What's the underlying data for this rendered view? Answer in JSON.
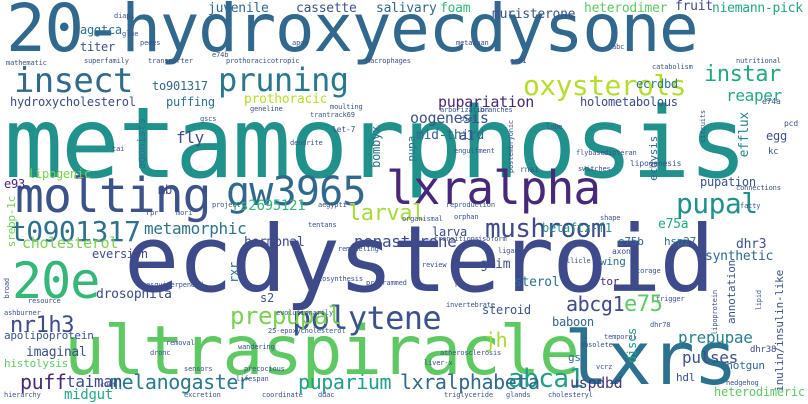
{
  "words": [
    {
      "text": "20-hydroxyecdysone",
      "color": "#31688e"
    },
    {
      "text": "metamorphosis",
      "color": "#21918c"
    },
    {
      "text": "ecdysteroid",
      "color": "#3e4a89"
    },
    {
      "text": "ultraspiracle",
      "color": "#5ec962"
    },
    {
      "text": "molting",
      "color": "#3b528b"
    },
    {
      "text": "gw3965",
      "color": "#31688e"
    },
    {
      "text": "lxralpha",
      "color": "#482878"
    },
    {
      "text": "lxrs",
      "color": "#2c728e"
    },
    {
      "text": "20e",
      "color": "#35b779"
    },
    {
      "text": "insect",
      "color": "#31688e"
    },
    {
      "text": "pruning",
      "color": "#2a788e"
    },
    {
      "text": "oxysterols",
      "color": "#b5de2b"
    },
    {
      "text": "t0901317",
      "color": "#2c728e"
    },
    {
      "text": "mushroom",
      "color": "#3e4a89"
    },
    {
      "text": "polytene",
      "color": "#3b528b"
    },
    {
      "text": "pupal",
      "color": "#21918c"
    },
    {
      "text": "instar",
      "color": "#22a884"
    },
    {
      "text": "prepupal",
      "color": "#7ad151"
    },
    {
      "text": "larval",
      "color": "#a5db36"
    },
    {
      "text": "abca1",
      "color": "#1f9e89"
    },
    {
      "text": "e75",
      "color": "#5ec962"
    },
    {
      "text": "nr1h3",
      "color": "#3e4a89"
    },
    {
      "text": "jh",
      "color": "#a5db36"
    },
    {
      "text": "melanogaster",
      "color": "#2a788e"
    },
    {
      "text": "puparium",
      "color": "#1f9e89"
    },
    {
      "text": "lxralphabeta",
      "color": "#31688e"
    },
    {
      "text": "abcg1",
      "color": "#3e4a89"
    },
    {
      "text": "taiman",
      "color": "#3e4a89"
    },
    {
      "text": "puff",
      "color": "#482878"
    },
    {
      "text": "midgut",
      "color": "#22a884"
    },
    {
      "text": "uspdbd",
      "color": "#443983"
    },
    {
      "text": "prepupae",
      "color": "#26828e"
    },
    {
      "text": "pulses",
      "color": "#3b528b"
    },
    {
      "text": "cholesterol",
      "color": "#7ad151"
    },
    {
      "text": "metamorphic",
      "color": "#2c728e"
    },
    {
      "text": "rs2695121",
      "color": "#35b779"
    },
    {
      "text": "ponasterone",
      "color": "#3e4a89"
    },
    {
      "text": "oogenesis",
      "color": "#3b528b"
    },
    {
      "text": "pupariation",
      "color": "#482878"
    },
    {
      "text": "juvenile",
      "color": "#31688e"
    },
    {
      "text": "cassette",
      "color": "#3b528b"
    },
    {
      "text": "salivary",
      "color": "#31688e"
    },
    {
      "text": "foam",
      "color": "#35b779"
    },
    {
      "text": "muristerone",
      "color": "#3b528b"
    },
    {
      "text": "heterodimer",
      "color": "#5ec962"
    },
    {
      "text": "fruit",
      "color": "#3e4a89"
    },
    {
      "text": "niemann-pick",
      "color": "#22a884"
    },
    {
      "text": "aggtca",
      "color": "#2c728e"
    },
    {
      "text": "titer",
      "color": "#3b528b"
    },
    {
      "text": "to901317",
      "color": "#31688e"
    },
    {
      "text": "hydroxycholesterol",
      "color": "#3e4a89"
    },
    {
      "text": "puffing",
      "color": "#2c728e"
    },
    {
      "text": "prothoracic",
      "color": "#b5de2b"
    },
    {
      "text": "mid-third",
      "color": "#31688e"
    },
    {
      "text": "holometabolous",
      "color": "#3e4a89"
    },
    {
      "text": "reaper",
      "color": "#22a884"
    },
    {
      "text": "efflux",
      "color": "#26828e"
    },
    {
      "text": "egg",
      "color": "#3b528b"
    },
    {
      "text": "ecrdbd",
      "color": "#2a788e"
    },
    {
      "text": "fly",
      "color": "#3e4a89"
    },
    {
      "text": "agonists",
      "color": "#2c728e"
    },
    {
      "text": "bombyx",
      "color": "#2c728e"
    },
    {
      "text": "pupa",
      "color": "#2a788e"
    },
    {
      "text": "a1",
      "color": "#3b528b"
    },
    {
      "text": "lipogenic",
      "color": "#7ad151"
    },
    {
      "text": "e93",
      "color": "#482878"
    },
    {
      "text": "mb",
      "color": "#3e4a89"
    },
    {
      "text": "pupation",
      "color": "#3b528b"
    },
    {
      "text": "ecdysis",
      "color": "#31688e"
    },
    {
      "text": "larva",
      "color": "#3e4a89"
    },
    {
      "text": "betaftz-f1",
      "color": "#21918c"
    },
    {
      "text": "e75a",
      "color": "#22a884"
    },
    {
      "text": "e75b",
      "color": "#31688e"
    },
    {
      "text": "hsp27",
      "color": "#2c728e"
    },
    {
      "text": "dhr3",
      "color": "#3b528b"
    },
    {
      "text": "synthetic",
      "color": "#31688e"
    },
    {
      "text": "hormonal",
      "color": "#3e4a89"
    },
    {
      "text": "srebp-1c",
      "color": "#7ad151"
    },
    {
      "text": "eversion",
      "color": "#3e4a89"
    },
    {
      "text": "grim",
      "color": "#3b528b"
    },
    {
      "text": "sterol",
      "color": "#2c728e"
    },
    {
      "text": "annotation",
      "color": "#3b528b"
    },
    {
      "text": "wing",
      "color": "#2c728e"
    },
    {
      "text": "drosophila",
      "color": "#3e4a89"
    },
    {
      "text": "rxr",
      "color": "#2c728e"
    },
    {
      "text": "s2",
      "color": "#3b528b"
    },
    {
      "text": "steroid",
      "color": "#3b528b"
    },
    {
      "text": "tor",
      "color": "#482878"
    },
    {
      "text": "imaginal",
      "color": "#3b528b"
    },
    {
      "text": "baboon",
      "color": "#31688e"
    },
    {
      "text": "discs",
      "color": "#1f9e89"
    },
    {
      "text": "inulin/insulin-like",
      "color": "#3b528b"
    },
    {
      "text": "gsc",
      "color": "#2c728e"
    },
    {
      "text": "hdl",
      "color": "#3b528b"
    },
    {
      "text": "shotgun",
      "color": "#31688e"
    },
    {
      "text": "heterodimeric",
      "color": "#5ec962"
    },
    {
      "text": "dhr38",
      "color": "#3e4a89"
    },
    {
      "text": "apolipoprotein",
      "color": "#3b528b"
    },
    {
      "text": "histolysis",
      "color": "#5ec962"
    },
    {
      "text": "metazoan",
      "color": "#3e4a89"
    },
    {
      "text": "ecd1",
      "color": "#3b528b"
    },
    {
      "text": "arborization",
      "color": "#3b528b"
    },
    {
      "text": "branches",
      "color": "#3b528b"
    },
    {
      "text": "dendrite",
      "color": "#3b528b"
    },
    {
      "text": "moulting",
      "color": "#3b528b"
    },
    {
      "text": "let-7",
      "color": "#3b528b"
    },
    {
      "text": "lipogenesis",
      "color": "#3b528b"
    },
    {
      "text": "rnai",
      "color": "#3b528b"
    },
    {
      "text": "switches",
      "color": "#3b528b"
    },
    {
      "text": "connections",
      "color": "#3b528b"
    },
    {
      "text": "fatty",
      "color": "#3b528b"
    },
    {
      "text": "shape",
      "color": "#3b528b"
    },
    {
      "text": "isoform",
      "color": "#3b528b"
    },
    {
      "text": "transitions",
      "color": "#3b528b"
    },
    {
      "text": "remodeling",
      "color": "#3b528b"
    },
    {
      "text": "tentans",
      "color": "#3b528b"
    },
    {
      "text": "ligands",
      "color": "#3b528b"
    },
    {
      "text": "follicle",
      "color": "#3b528b"
    },
    {
      "text": "axon",
      "color": "#3b528b"
    },
    {
      "text": "storage",
      "color": "#3b528b"
    },
    {
      "text": "review",
      "color": "#3b528b"
    },
    {
      "text": "programmed",
      "color": "#3b528b"
    },
    {
      "text": "fat",
      "color": "#3b528b"
    },
    {
      "text": "biosynthesis",
      "color": "#3b528b"
    },
    {
      "text": "invertebrate",
      "color": "#3b528b"
    },
    {
      "text": "sesquiterpenoid",
      "color": "#3b528b"
    },
    {
      "text": "25-epoxycholesterol",
      "color": "#3b528b"
    },
    {
      "text": "obsolete",
      "color": "#3b528b"
    },
    {
      "text": "wandering",
      "color": "#3b528b"
    },
    {
      "text": "precocious",
      "color": "#3b528b"
    },
    {
      "text": "excretion",
      "color": "#3b528b"
    },
    {
      "text": "coordinate",
      "color": "#3b528b"
    },
    {
      "text": "ddac",
      "color": "#3b528b"
    },
    {
      "text": "triglyceride",
      "color": "#3b528b"
    },
    {
      "text": "glands",
      "color": "#3b528b"
    },
    {
      "text": "cholesteryl",
      "color": "#3b528b"
    },
    {
      "text": "hierarchy",
      "color": "#3b528b"
    },
    {
      "text": "sensors",
      "color": "#3b528b"
    },
    {
      "text": "dronc",
      "color": "#3b528b"
    },
    {
      "text": "removal",
      "color": "#3b528b"
    },
    {
      "text": "resource",
      "color": "#3b528b"
    },
    {
      "text": "retinoid",
      "color": "#3b528b"
    },
    {
      "text": "ashburner",
      "color": "#3b528b"
    },
    {
      "text": "atherosclerosis",
      "color": "#3b528b"
    },
    {
      "text": "liver-x",
      "color": "#3b528b"
    },
    {
      "text": "vcrz",
      "color": "#3b528b"
    },
    {
      "text": "superfamily",
      "color": "#3b528b"
    },
    {
      "text": "transporter",
      "color": "#3b528b"
    },
    {
      "text": "prothoracicotropic",
      "color": "#3b528b"
    },
    {
      "text": "macrophages",
      "color": "#3b528b"
    },
    {
      "text": "catabolism",
      "color": "#3b528b"
    },
    {
      "text": "nutritional",
      "color": "#3b528b"
    },
    {
      "text": "trantrack69",
      "color": "#3b528b"
    },
    {
      "text": "postembryonic",
      "color": "#3b528b"
    },
    {
      "text": "flybase",
      "color": "#3b528b"
    },
    {
      "text": "dipteran",
      "color": "#3b528b"
    },
    {
      "text": "circuits",
      "color": "#3b528b"
    },
    {
      "text": "engulfment",
      "color": "#3b528b"
    },
    {
      "text": "reproduction",
      "color": "#3b528b"
    },
    {
      "text": "aegypti",
      "color": "#3b528b"
    },
    {
      "text": "project",
      "color": "#3b528b"
    },
    {
      "text": "organismal",
      "color": "#3b528b"
    },
    {
      "text": "orphan",
      "color": "#3b528b"
    },
    {
      "text": "evolutionarily",
      "color": "#3b528b"
    },
    {
      "text": "dhr78",
      "color": "#3b528b"
    },
    {
      "text": "trigger",
      "color": "#3b528b"
    },
    {
      "text": "lipid",
      "color": "#3b528b"
    },
    {
      "text": "lipoprotein",
      "color": "#3b528b"
    },
    {
      "text": "temporal",
      "color": "#3b528b"
    },
    {
      "text": "lifespan",
      "color": "#3b528b"
    },
    {
      "text": "broad",
      "color": "#3b528b"
    },
    {
      "text": "kc",
      "color": "#3b528b"
    },
    {
      "text": "pcd",
      "color": "#3b528b"
    },
    {
      "text": "e74a",
      "color": "#3b528b"
    },
    {
      "text": "e74b",
      "color": "#3b528b"
    },
    {
      "text": "apoe",
      "color": "#3b528b"
    },
    {
      "text": "geneline",
      "color": "#3b528b"
    },
    {
      "text": "diet",
      "color": "#3b528b"
    },
    {
      "text": "lobe",
      "color": "#3b528b"
    },
    {
      "text": "abc",
      "color": "#3b528b"
    },
    {
      "text": "tai",
      "color": "#3b528b"
    },
    {
      "text": "rpr",
      "color": "#3b528b"
    },
    {
      "text": "mori",
      "color": "#3b528b"
    },
    {
      "text": "pedes",
      "color": "#3b528b"
    },
    {
      "text": "diap1",
      "color": "#3b528b"
    },
    {
      "text": "glue",
      "color": "#3b528b"
    },
    {
      "text": "mathematic",
      "color": "#3b528b"
    },
    {
      "text": "gscs",
      "color": "#3b528b"
    },
    {
      "text": "cuet",
      "color": "#3b528b"
    },
    {
      "text": "hedgehog",
      "color": "#3b528b"
    }
  ]
}
